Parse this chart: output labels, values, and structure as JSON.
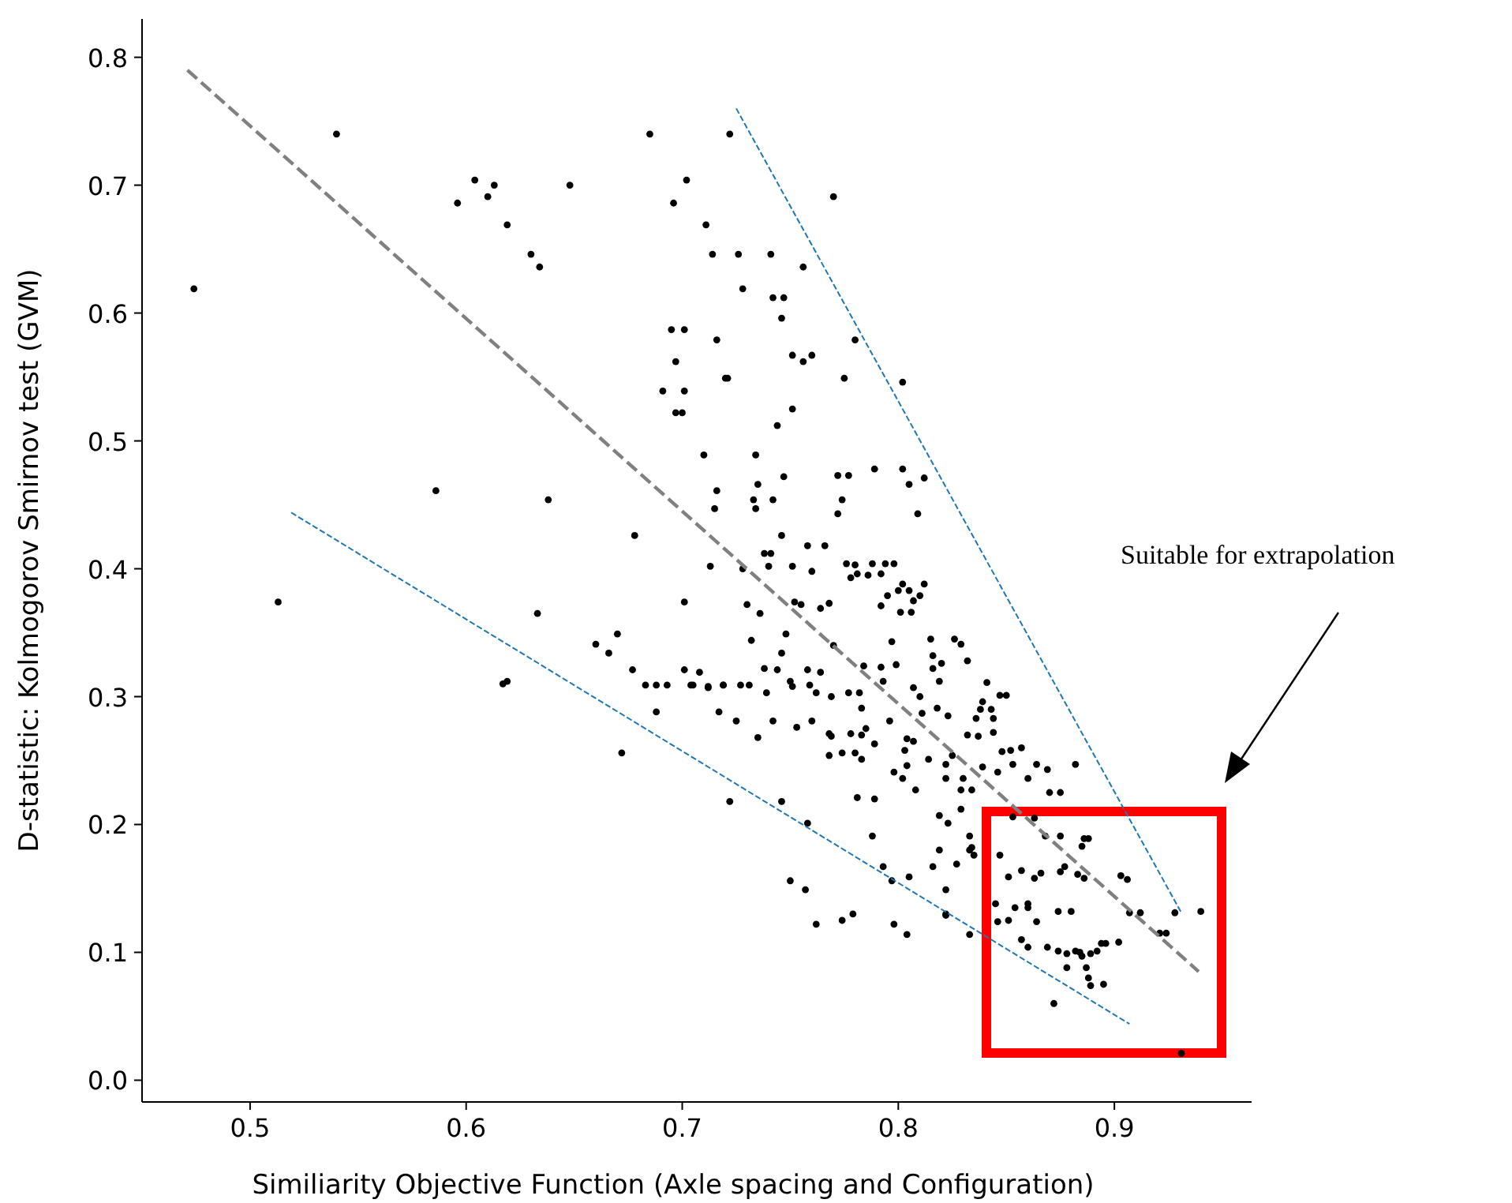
{
  "chart_data": {
    "type": "scatter",
    "xlabel": "Similiarity Objective Function (Axle spacing and Configuration)",
    "ylabel": "D-statistic: Kolmogorov Smirnov test (GVM)",
    "xlim": [
      0.45,
      0.9635
    ],
    "ylim": [
      -0.017,
      0.83
    ],
    "xticks": [
      0.5,
      0.6,
      0.7,
      0.8,
      0.9
    ],
    "yticks": [
      {
        "value": 0,
        "label": "0.0"
      },
      0.1,
      0.2,
      0.3,
      0.4,
      0.5,
      0.6,
      0.7,
      0.8
    ],
    "annotations": [
      "Suitable for extrapolation"
    ],
    "marker": "circle",
    "series": [
      {
        "color": "#000000",
        "x": [
          0.54,
          0.474,
          0.604,
          0.613,
          0.596,
          0.61,
          0.619,
          0.648,
          0.63,
          0.634,
          0.586,
          0.513,
          0.638,
          0.678,
          0.633,
          0.66,
          0.666,
          0.67,
          0.677,
          0.617,
          0.619,
          0.683,
          0.688,
          0.693,
          0.688,
          0.672,
          0.685,
          0.702,
          0.696,
          0.711,
          0.714,
          0.695,
          0.701,
          0.716,
          0.697,
          0.691,
          0.701,
          0.697,
          0.7,
          0.72,
          0.71,
          0.716,
          0.715,
          0.713,
          0.701,
          0.701,
          0.708,
          0.705,
          0.712,
          0.719,
          0.717,
          0.725,
          0.722,
          0.77,
          0.726,
          0.741,
          0.756,
          0.728,
          0.742,
          0.747,
          0.746,
          0.78,
          0.751,
          0.76,
          0.756,
          0.775,
          0.802,
          0.721,
          0.751,
          0.744,
          0.734,
          0.747,
          0.772,
          0.777,
          0.789,
          0.802,
          0.805,
          0.812,
          0.735,
          0.733,
          0.742,
          0.734,
          0.774,
          0.772,
          0.809,
          0.746,
          0.758,
          0.766,
          0.738,
          0.741,
          0.751,
          0.76,
          0.74,
          0.728,
          0.776,
          0.78,
          0.788,
          0.794,
          0.798,
          0.778,
          0.781,
          0.786,
          0.792,
          0.802,
          0.812,
          0.795,
          0.8,
          0.805,
          0.81,
          0.807,
          0.73,
          0.752,
          0.755,
          0.764,
          0.768,
          0.792,
          0.736,
          0.801,
          0.806,
          0.748,
          0.732,
          0.746,
          0.77,
          0.797,
          0.815,
          0.826,
          0.829,
          0.816,
          0.82,
          0.816,
          0.832,
          0.784,
          0.792,
          0.799,
          0.738,
          0.744,
          0.758,
          0.764,
          0.704,
          0.712,
          0.719,
          0.727,
          0.731,
          0.739,
          0.75,
          0.751,
          0.759,
          0.762,
          0.769,
          0.777,
          0.782,
          0.793,
          0.807,
          0.81,
          0.819,
          0.841,
          0.847,
          0.85,
          0.839,
          0.838,
          0.843,
          0.836,
          0.844,
          0.783,
          0.811,
          0.818,
          0.823,
          0.742,
          0.76,
          0.753,
          0.796,
          0.768,
          0.769,
          0.778,
          0.783,
          0.785,
          0.735,
          0.804,
          0.807,
          0.832,
          0.837,
          0.844,
          0.768,
          0.774,
          0.78,
          0.783,
          0.789,
          0.803,
          0.814,
          0.822,
          0.825,
          0.804,
          0.798,
          0.802,
          0.822,
          0.83,
          0.839,
          0.846,
          0.848,
          0.852,
          0.857,
          0.853,
          0.86,
          0.808,
          0.829,
          0.834,
          0.781,
          0.789,
          0.829,
          0.722,
          0.746,
          0.819,
          0.823,
          0.833,
          0.758,
          0.788,
          0.819,
          0.833,
          0.835,
          0.816,
          0.827,
          0.793,
          0.805,
          0.797,
          0.75,
          0.757,
          0.822,
          0.779,
          0.774,
          0.762,
          0.798,
          0.804,
          0.822,
          0.833,
          0.853,
          0.863,
          0.868,
          0.875,
          0.886,
          0.888,
          0.885,
          0.847,
          0.851,
          0.857,
          0.863,
          0.866,
          0.875,
          0.877,
          0.883,
          0.886,
          0.903,
          0.906,
          0.845,
          0.854,
          0.86,
          0.86,
          0.846,
          0.851,
          0.864,
          0.874,
          0.88,
          0.907,
          0.912,
          0.928,
          0.94,
          0.921,
          0.924,
          0.857,
          0.86,
          0.869,
          0.874,
          0.878,
          0.882,
          0.884,
          0.885,
          0.889,
          0.892,
          0.894,
          0.896,
          0.902,
          0.878,
          0.887,
          0.888,
          0.889,
          0.895,
          0.872,
          0.931,
          0.882,
          0.864,
          0.869,
          0.87,
          0.875,
          0.834,
          0.822
        ],
        "values": [
          0.74,
          0.619,
          0.704,
          0.7,
          0.686,
          0.691,
          0.669,
          0.7,
          0.646,
          0.636,
          0.461,
          0.374,
          0.454,
          0.426,
          0.365,
          0.341,
          0.334,
          0.349,
          0.321,
          0.31,
          0.312,
          0.309,
          0.309,
          0.309,
          0.288,
          0.256,
          0.74,
          0.704,
          0.686,
          0.669,
          0.646,
          0.587,
          0.587,
          0.579,
          0.562,
          0.539,
          0.539,
          0.522,
          0.522,
          0.549,
          0.489,
          0.461,
          0.447,
          0.402,
          0.374,
          0.321,
          0.319,
          0.309,
          0.308,
          0.309,
          0.288,
          0.281,
          0.74,
          0.691,
          0.646,
          0.646,
          0.636,
          0.619,
          0.612,
          0.612,
          0.596,
          0.579,
          0.567,
          0.567,
          0.562,
          0.549,
          0.546,
          0.549,
          0.525,
          0.512,
          0.489,
          0.472,
          0.473,
          0.473,
          0.478,
          0.478,
          0.466,
          0.471,
          0.466,
          0.454,
          0.454,
          0.447,
          0.454,
          0.443,
          0.443,
          0.426,
          0.418,
          0.418,
          0.412,
          0.412,
          0.402,
          0.398,
          0.402,
          0.4,
          0.404,
          0.403,
          0.404,
          0.404,
          0.404,
          0.393,
          0.396,
          0.395,
          0.396,
          0.388,
          0.388,
          0.379,
          0.383,
          0.383,
          0.379,
          0.375,
          0.372,
          0.374,
          0.372,
          0.369,
          0.373,
          0.371,
          0.365,
          0.366,
          0.366,
          0.349,
          0.344,
          0.334,
          0.34,
          0.343,
          0.345,
          0.345,
          0.341,
          0.332,
          0.326,
          0.322,
          0.328,
          0.324,
          0.323,
          0.325,
          0.322,
          0.321,
          0.321,
          0.319,
          0.309,
          0.307,
          0.309,
          0.309,
          0.309,
          0.303,
          0.312,
          0.308,
          0.309,
          0.303,
          0.3,
          0.303,
          0.303,
          0.312,
          0.307,
          0.3,
          0.312,
          0.311,
          0.301,
          0.301,
          0.296,
          0.29,
          0.29,
          0.283,
          0.283,
          0.291,
          0.287,
          0.291,
          0.285,
          0.281,
          0.281,
          0.276,
          0.281,
          0.271,
          0.269,
          0.271,
          0.27,
          0.275,
          0.268,
          0.267,
          0.265,
          0.27,
          0.269,
          0.272,
          0.254,
          0.256,
          0.256,
          0.251,
          0.263,
          0.258,
          0.251,
          0.247,
          0.254,
          0.246,
          0.241,
          0.236,
          0.236,
          0.236,
          0.245,
          0.241,
          0.257,
          0.258,
          0.26,
          0.247,
          0.236,
          0.227,
          0.227,
          0.227,
          0.221,
          0.22,
          0.212,
          0.218,
          0.218,
          0.207,
          0.201,
          0.191,
          0.201,
          0.191,
          0.18,
          0.18,
          0.176,
          0.167,
          0.169,
          0.167,
          0.159,
          0.156,
          0.156,
          0.149,
          0.149,
          0.13,
          0.125,
          0.122,
          0.122,
          0.114,
          0.13,
          0.114,
          0.206,
          0.205,
          0.191,
          0.191,
          0.189,
          0.189,
          0.183,
          0.176,
          0.159,
          0.164,
          0.158,
          0.162,
          0.163,
          0.167,
          0.161,
          0.158,
          0.16,
          0.157,
          0.138,
          0.135,
          0.138,
          0.135,
          0.124,
          0.125,
          0.124,
          0.132,
          0.132,
          0.131,
          0.131,
          0.131,
          0.132,
          0.115,
          0.115,
          0.11,
          0.104,
          0.104,
          0.101,
          0.099,
          0.101,
          0.1,
          0.097,
          0.099,
          0.101,
          0.107,
          0.107,
          0.108,
          0.088,
          0.088,
          0.08,
          0.074,
          0.075,
          0.06,
          0.021,
          0.247,
          0.247,
          0.243,
          0.225,
          0.225,
          0.182,
          0.129
        ]
      },
      {
        "type": "line",
        "color": "#808080",
        "line_style": "dashed",
        "marker": "none",
        "x": [
          0.471,
          0.939
        ],
        "values": [
          0.79,
          0.085
        ]
      },
      {
        "type": "line",
        "color": "#1f77b4",
        "line_style": "dashed",
        "marker": "none",
        "x": [
          0.519,
          0.907
        ],
        "values": [
          0.444,
          0.044
        ]
      },
      {
        "type": "line",
        "color": "#1f77b4",
        "line_style": "dashed",
        "marker": "none",
        "x": [
          0.725,
          0.931
        ],
        "values": [
          0.76,
          0.131
        ]
      }
    ]
  }
}
